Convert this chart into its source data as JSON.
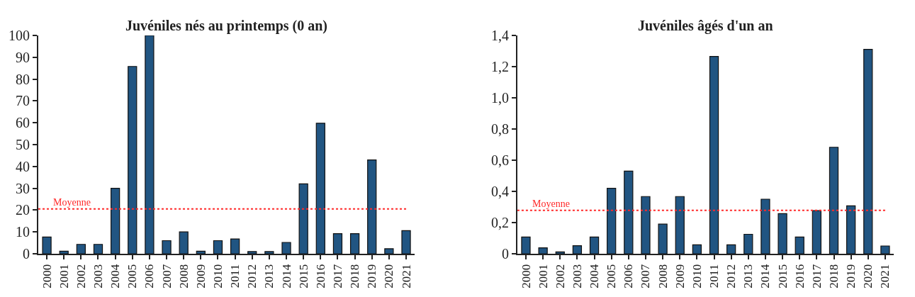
{
  "chart_data": [
    {
      "type": "bar",
      "title": "Juvéniles nés au printemps (0 an)",
      "categories": [
        "2000",
        "2001",
        "2002",
        "2003",
        "2004",
        "2005",
        "2006",
        "2007",
        "2008",
        "2009",
        "2010",
        "2011",
        "2012",
        "2013",
        "2014",
        "2015",
        "2016",
        "2017",
        "2018",
        "2019",
        "2020",
        "2021"
      ],
      "values": [
        7.7,
        1.2,
        4.3,
        4.3,
        30,
        85.8,
        100,
        6,
        10,
        1.2,
        6,
        6.8,
        1,
        1,
        5.2,
        32,
        59.8,
        9.2,
        9.2,
        43,
        2.3,
        10.6
      ],
      "color": "#215582",
      "ylim": [
        0,
        100
      ],
      "yticks": [
        0,
        10,
        20,
        30,
        40,
        50,
        60,
        70,
        80,
        90,
        100
      ],
      "ref_lines": [
        {
          "axis": "y",
          "value": 20.5,
          "label": "Moyenne",
          "color": "#ff2a2a",
          "line_style": "dotted"
        }
      ]
    },
    {
      "type": "bar",
      "title": "Juvéniles âgés d'un an",
      "categories": [
        "2000",
        "2001",
        "2002",
        "2003",
        "2004",
        "2005",
        "2006",
        "2007",
        "2008",
        "2009",
        "2010",
        "2011",
        "2012",
        "2013",
        "2014",
        "2015",
        "2016",
        "2017",
        "2018",
        "2019",
        "2020",
        "2021"
      ],
      "values": [
        0.107,
        0.038,
        0.012,
        0.052,
        0.107,
        0.42,
        0.53,
        0.367,
        0.19,
        0.367,
        0.057,
        1.265,
        0.057,
        0.125,
        0.35,
        0.257,
        0.107,
        0.277,
        0.683,
        0.307,
        1.311,
        0.05
      ],
      "color": "#215582",
      "ylim": [
        0,
        1.4
      ],
      "yticks": [
        0,
        {
          "value": 0.2,
          "label": "0,2"
        },
        {
          "value": 0.4,
          "label": "0,4"
        },
        {
          "value": 0.6,
          "label": "0,6"
        },
        {
          "value": 0.8,
          "label": "0,8"
        },
        {
          "value": 1.0,
          "label": "1,0"
        },
        {
          "value": 1.2,
          "label": "1,2"
        },
        {
          "value": 1.4,
          "label": "1,4"
        }
      ],
      "ref_lines": [
        {
          "axis": "y",
          "value": 0.278,
          "label": "Moyenne",
          "color": "#ff2a2a",
          "line_style": "dotted"
        }
      ]
    }
  ]
}
